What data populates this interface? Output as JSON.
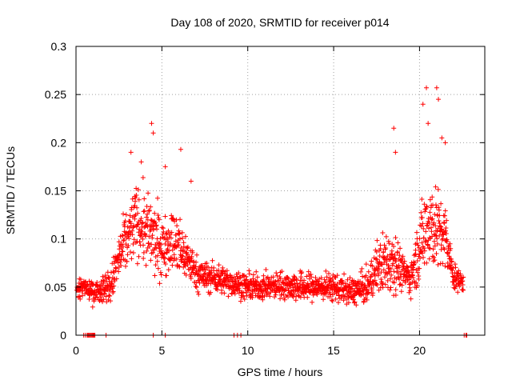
{
  "chart_data": {
    "type": "scatter",
    "title": "Day 108 of 2020, SRMTID for receiver p014",
    "xlabel": "GPS time / hours",
    "ylabel": "SRMTID / TECUs",
    "xlim": [
      0,
      23.8
    ],
    "ylim": [
      0,
      0.3
    ],
    "grid": true,
    "marker": "plus",
    "color": "#ff0000",
    "xticks": [
      0,
      5,
      10,
      15,
      20
    ],
    "xtick_labels": [
      "0",
      "5",
      "10",
      "15",
      "20"
    ],
    "yticks": [
      0,
      0.05,
      0.1,
      0.15,
      0.2,
      0.25,
      0.3
    ],
    "ytick_labels": [
      "0",
      "0.05",
      "0.1",
      "0.15",
      "0.2",
      "0.25",
      "0.3"
    ],
    "envelope": {
      "description": "approximate center and spread of the point cloud per hour",
      "hours": [
        0,
        0.5,
        1,
        1.5,
        2,
        2.5,
        3,
        3.5,
        4,
        4.5,
        5,
        5.5,
        6,
        6.5,
        7,
        7.5,
        8,
        9,
        10,
        11,
        12,
        13,
        14,
        15,
        16,
        17,
        17.5,
        18,
        18.5,
        19,
        19.5,
        20,
        20.5,
        21,
        21.5,
        22,
        22.5,
        23
      ],
      "center": [
        0.045,
        0.05,
        0.045,
        0.05,
        0.05,
        0.08,
        0.1,
        0.12,
        0.11,
        0.1,
        0.09,
        0.1,
        0.09,
        0.08,
        0.065,
        0.06,
        0.06,
        0.055,
        0.05,
        0.05,
        0.052,
        0.05,
        0.05,
        0.05,
        0.045,
        0.05,
        0.07,
        0.075,
        0.08,
        0.065,
        0.06,
        0.09,
        0.12,
        0.11,
        0.1,
        0.06,
        0.055,
        0.05
      ],
      "spread": [
        0.01,
        0.012,
        0.015,
        0.018,
        0.02,
        0.03,
        0.04,
        0.04,
        0.045,
        0.045,
        0.035,
        0.035,
        0.04,
        0.025,
        0.02,
        0.02,
        0.018,
        0.016,
        0.015,
        0.015,
        0.016,
        0.018,
        0.016,
        0.016,
        0.016,
        0.02,
        0.03,
        0.04,
        0.04,
        0.02,
        0.02,
        0.04,
        0.06,
        0.05,
        0.04,
        0.015,
        0.012,
        0.01
      ]
    },
    "peaks": [
      {
        "x": 3.2,
        "y": 0.19
      },
      {
        "x": 3.8,
        "y": 0.18
      },
      {
        "x": 4.4,
        "y": 0.22
      },
      {
        "x": 4.5,
        "y": 0.21
      },
      {
        "x": 5.2,
        "y": 0.175
      },
      {
        "x": 6.1,
        "y": 0.193
      },
      {
        "x": 6.7,
        "y": 0.16
      },
      {
        "x": 18.5,
        "y": 0.215
      },
      {
        "x": 18.6,
        "y": 0.19
      },
      {
        "x": 20.2,
        "y": 0.24
      },
      {
        "x": 20.4,
        "y": 0.257
      },
      {
        "x": 20.5,
        "y": 0.22
      },
      {
        "x": 21.0,
        "y": 0.257
      },
      {
        "x": 21.1,
        "y": 0.245
      },
      {
        "x": 21.3,
        "y": 0.205
      },
      {
        "x": 21.5,
        "y": 0.2
      }
    ],
    "zero_points": [
      0.45,
      0.55,
      0.65,
      0.7,
      0.75,
      0.8,
      0.85,
      0.9,
      0.95,
      1.0,
      1.05,
      1.1,
      1.75,
      4.5,
      5.2,
      9.2,
      9.4,
      9.6,
      22.6,
      22.7,
      22.75
    ],
    "sample_interval_hours": 0.0125
  }
}
